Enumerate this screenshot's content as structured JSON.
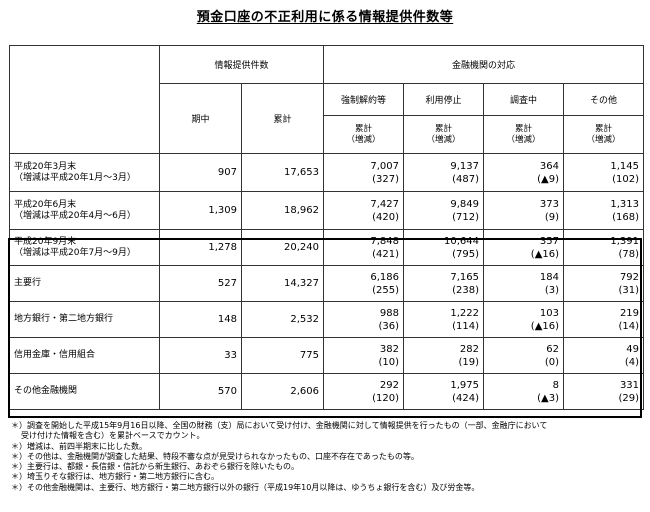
{
  "title": "預金口座の不正利用に係る情報提供件数等",
  "header": {
    "info_count": "情報提供件数",
    "response": "金融機関の対応",
    "period": "期中",
    "cumulative": "累計",
    "forced_cancel": "強制解約等",
    "suspend": "利用停止",
    "investigating": "調査中",
    "other": "その他",
    "sub_line1": "累計",
    "sub_line2": "（増減）"
  },
  "rows": [
    {
      "label1": "平成20年3月末",
      "label2": "（増減は平成20年1月～3月）",
      "period": "907",
      "cumulative": "17,653",
      "c1": "7,007",
      "c1d": "(327)",
      "c2": "9,137",
      "c2d": "(487)",
      "c3": "364",
      "c3d": "(▲9)",
      "c4": "1,145",
      "c4d": "(102)"
    },
    {
      "label1": "平成20年6月末",
      "label2": "（増減は平成20年4月～6月）",
      "period": "1,309",
      "cumulative": "18,962",
      "c1": "7,427",
      "c1d": "(420)",
      "c2": "9,849",
      "c2d": "(712)",
      "c3": "373",
      "c3d": "(9)",
      "c4": "1,313",
      "c4d": "(168)"
    },
    {
      "label1": "平成20年9月末",
      "label2": "（増減は平成20年7月～9月）",
      "period": "1,278",
      "cumulative": "20,240",
      "c1": "7,848",
      "c1d": "(421)",
      "c2": "10,644",
      "c2d": "(795)",
      "c3": "357",
      "c3d": "(▲16)",
      "c4": "1,391",
      "c4d": "(78)"
    },
    {
      "label1": "主要行",
      "period": "527",
      "cumulative": "14,327",
      "c1": "6,186",
      "c1d": "(255)",
      "c2": "7,165",
      "c2d": "(238)",
      "c3": "184",
      "c3d": "(3)",
      "c4": "792",
      "c4d": "(31)"
    },
    {
      "label1": "地方銀行・第二地方銀行",
      "period": "148",
      "cumulative": "2,532",
      "c1": "988",
      "c1d": "(36)",
      "c2": "1,222",
      "c2d": "(114)",
      "c3": "103",
      "c3d": "(▲16)",
      "c4": "219",
      "c4d": "(14)"
    },
    {
      "label1": "信用金庫・信用組合",
      "period": "33",
      "cumulative": "775",
      "c1": "382",
      "c1d": "(10)",
      "c2": "282",
      "c2d": "(19)",
      "c3": "62",
      "c3d": "(0)",
      "c4": "49",
      "c4d": "(4)"
    },
    {
      "label1": "その他金融機関",
      "period": "570",
      "cumulative": "2,606",
      "c1": "292",
      "c1d": "(120)",
      "c2": "1,975",
      "c2d": "(424)",
      "c3": "8",
      "c3d": "(▲3)",
      "c4": "331",
      "c4d": "(29)"
    }
  ],
  "notes": [
    "＊）調査を開始した平成15年9月16日以降、全国の財務（支）局において受け付け、金融機関に対して情報提供を行ったもの（一部、金融庁において",
    "受け付けた情報を含む）を累計ベースでカウント。",
    "＊）増減は、前四半期末に比した数。",
    "＊）その他は、金融機関が調査した結果、特段不審な点が見受けられなかったもの、口座不存在であったもの等。",
    "＊）主要行は、都銀・長信銀・信託から新生銀行、あおぞら銀行を除いたもの。",
    "＊）埼玉りそな銀行は、地方銀行・第二地方銀行に含む。",
    "＊）その他金融機関は、主要行、地方銀行・第二地方銀行以外の銀行（平成19年10月以降は、ゆうちょ銀行を含む）及び労金等。"
  ]
}
